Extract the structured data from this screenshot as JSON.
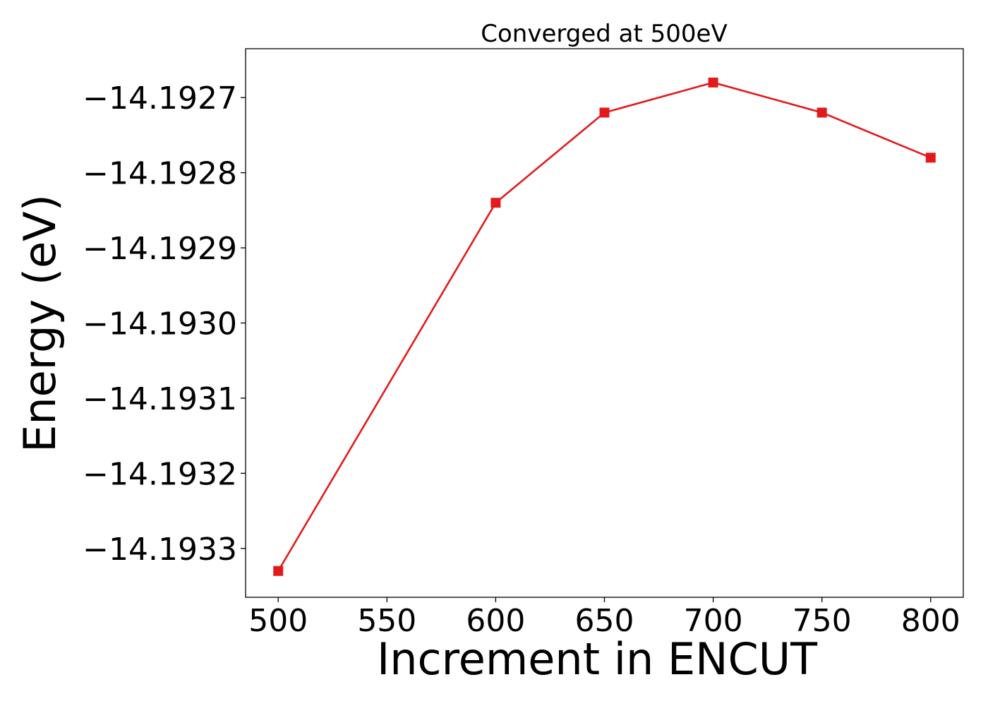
{
  "chart_data": {
    "type": "line",
    "title": "Converged at 500eV",
    "xlabel": "Increment in ENCUT",
    "ylabel": "Energy (eV)",
    "x": [
      500,
      600,
      650,
      700,
      750,
      800
    ],
    "series": [
      {
        "values": [
          -14.19333,
          -14.19284,
          -14.19272,
          -14.19268,
          -14.19272,
          -14.19278
        ],
        "color": "#e31a1c",
        "marker": "square"
      }
    ],
    "xlim": [
      485,
      815
    ],
    "ylim": [
      -14.193365,
      -14.192635
    ],
    "x_ticks": [
      500,
      550,
      600,
      650,
      700,
      750,
      800
    ],
    "x_tick_labels": [
      "500",
      "550",
      "600",
      "650",
      "700",
      "750",
      "800"
    ],
    "y_ticks": [
      -14.1927,
      -14.1928,
      -14.1929,
      -14.193,
      -14.1931,
      -14.1932,
      -14.1933
    ],
    "y_tick_labels": [
      "−14.1927",
      "−14.1928",
      "−14.1929",
      "−14.1930",
      "−14.1931",
      "−14.1932",
      "−14.1933"
    ],
    "grid": false,
    "legend": false
  }
}
